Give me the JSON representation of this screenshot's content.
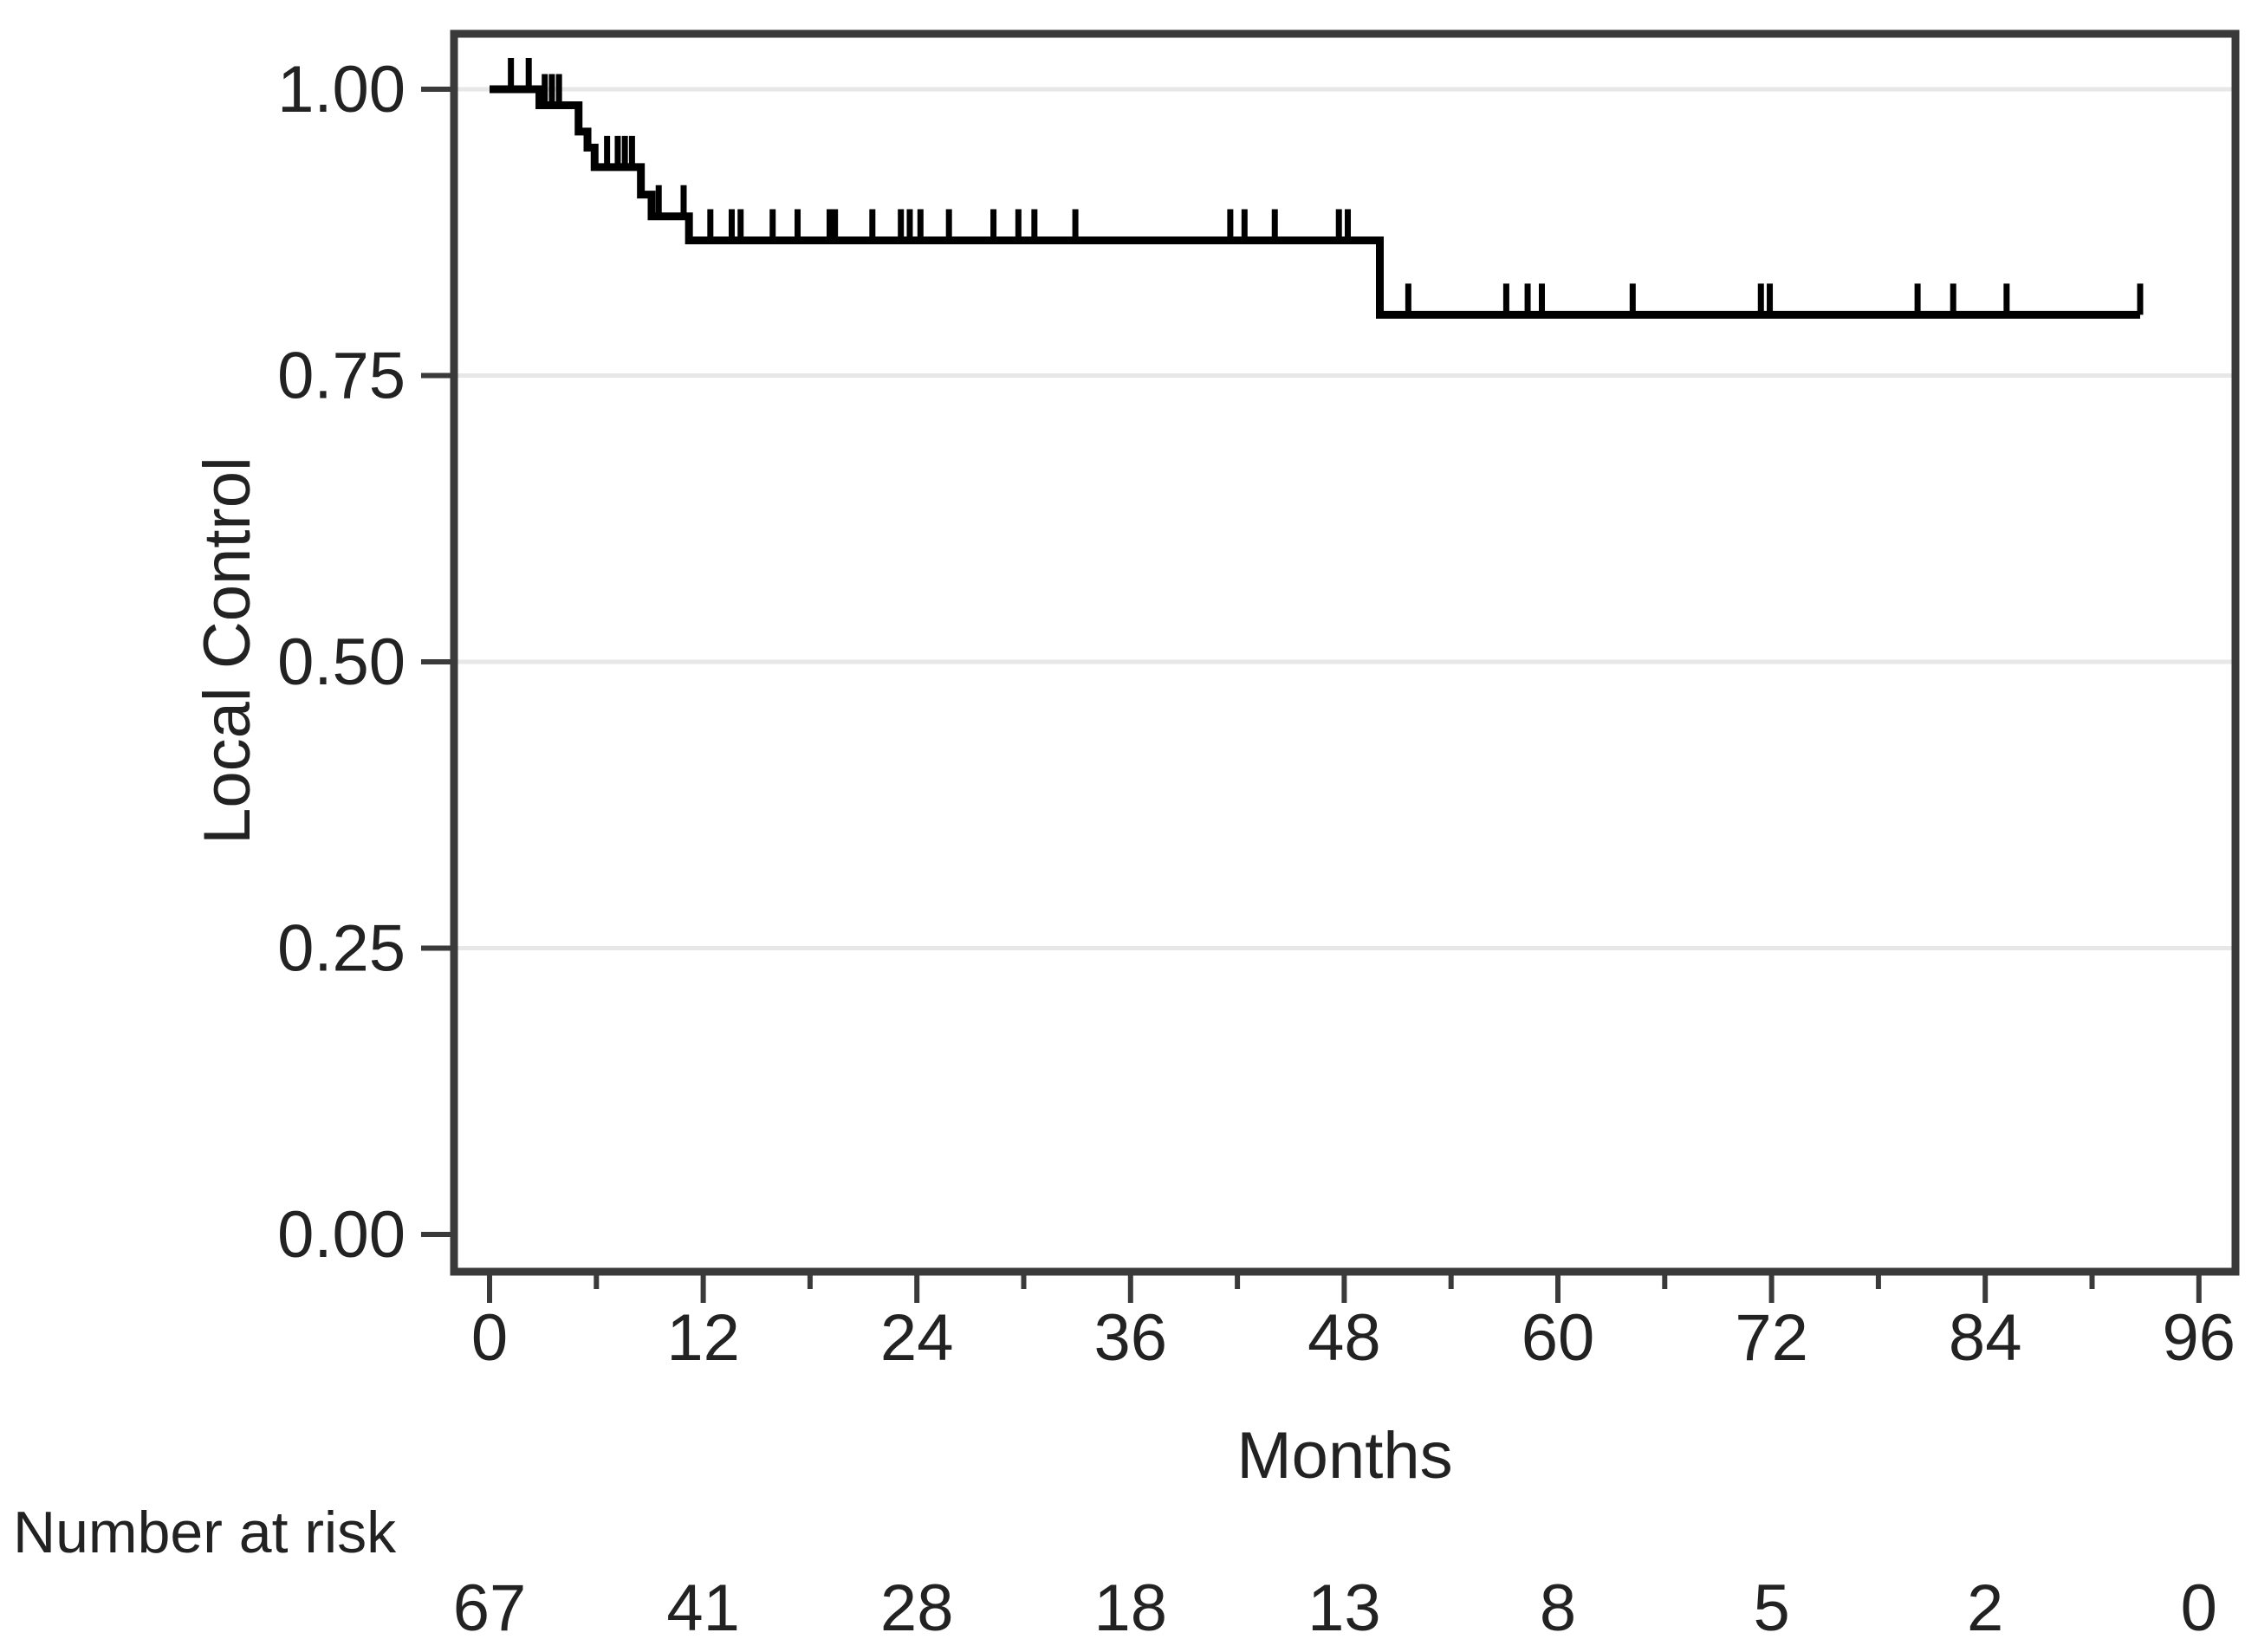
{
  "figure": {
    "background": "#ffffff"
  },
  "colors": {
    "curve": "#000000",
    "axis": "#3a3a3a",
    "grid": "#e7e7e7",
    "text": "#222222"
  },
  "chart_data": {
    "type": "line",
    "subtype": "kaplan-meier-step-curve",
    "title": "",
    "xlabel": "Months",
    "ylabel": "Local Control",
    "xlim": [
      0,
      96
    ],
    "ylim": [
      0.0,
      1.0
    ],
    "x_major_ticks": [
      0,
      12,
      24,
      36,
      48,
      60,
      72,
      84,
      96
    ],
    "x_minor_ticks": [
      6,
      18,
      30,
      42,
      54,
      66,
      78,
      90
    ],
    "y_ticks": [
      {
        "value": 1.0,
        "label": "1.00"
      },
      {
        "value": 0.75,
        "label": "0.75"
      },
      {
        "value": 0.5,
        "label": "0.50"
      },
      {
        "value": 0.25,
        "label": "0.25"
      },
      {
        "value": 0.0,
        "label": "0.00"
      }
    ],
    "y_gridlines": [
      0.25,
      0.5,
      0.75,
      1.0
    ],
    "legend": "none",
    "series": [
      {
        "name": "Local Control",
        "color": "#000000",
        "steps": [
          [
            0.0,
            1.0
          ],
          [
            2.8,
            0.986
          ],
          [
            5.0,
            0.963
          ],
          [
            5.5,
            0.949
          ],
          [
            5.9,
            0.932
          ],
          [
            8.5,
            0.908
          ],
          [
            9.1,
            0.889
          ],
          [
            11.2,
            0.868
          ],
          [
            50.0,
            0.803
          ]
        ],
        "end_time": 92.7,
        "censor_marks": [
          [
            1.2,
            1.0
          ],
          [
            2.2,
            1.0
          ],
          [
            3.1,
            0.986
          ],
          [
            3.5,
            0.986
          ],
          [
            3.9,
            0.986
          ],
          [
            6.6,
            0.932
          ],
          [
            7.2,
            0.932
          ],
          [
            7.6,
            0.932
          ],
          [
            8.0,
            0.932
          ],
          [
            9.5,
            0.889
          ],
          [
            10.9,
            0.889
          ],
          [
            12.4,
            0.868
          ],
          [
            13.6,
            0.868
          ],
          [
            14.1,
            0.868
          ],
          [
            15.9,
            0.868
          ],
          [
            17.3,
            0.868
          ],
          [
            19.1,
            0.868
          ],
          [
            19.4,
            0.868
          ],
          [
            21.5,
            0.868
          ],
          [
            23.1,
            0.868
          ],
          [
            23.6,
            0.868
          ],
          [
            24.2,
            0.868
          ],
          [
            25.8,
            0.868
          ],
          [
            28.3,
            0.868
          ],
          [
            29.7,
            0.868
          ],
          [
            30.6,
            0.868
          ],
          [
            32.9,
            0.868
          ],
          [
            41.6,
            0.868
          ],
          [
            42.4,
            0.868
          ],
          [
            44.1,
            0.868
          ],
          [
            47.7,
            0.868
          ],
          [
            48.2,
            0.868
          ],
          [
            51.6,
            0.803
          ],
          [
            57.1,
            0.803
          ],
          [
            58.3,
            0.803
          ],
          [
            59.1,
            0.803
          ],
          [
            64.2,
            0.803
          ],
          [
            71.4,
            0.803
          ],
          [
            71.9,
            0.803
          ],
          [
            80.2,
            0.803
          ],
          [
            82.2,
            0.803
          ],
          [
            85.2,
            0.803
          ],
          [
            92.7,
            0.803
          ]
        ]
      }
    ],
    "risk_table": {
      "label": "Number at risk",
      "times": [
        0,
        12,
        24,
        36,
        48,
        60,
        72,
        84,
        96
      ],
      "counts": [
        "67",
        "41",
        "28",
        "18",
        "13",
        "8",
        "5",
        "2",
        "0"
      ]
    }
  }
}
